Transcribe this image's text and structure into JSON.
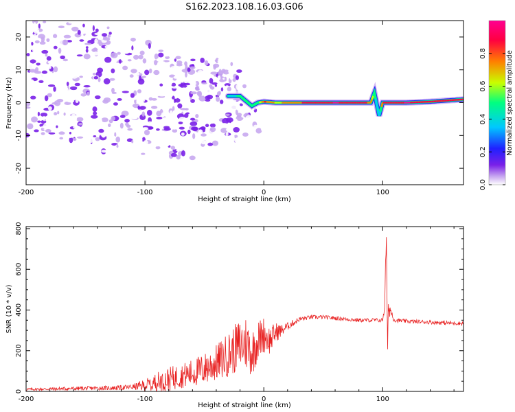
{
  "figure_title": "S162.2023.108.16.03.G06",
  "chart_data": [
    {
      "type": "heatmap",
      "title": "",
      "xlabel": "Height of straight line (km)",
      "ylabel": "Frequency (Hz)",
      "xlim": [
        -200,
        168
      ],
      "ylim": [
        -25,
        25
      ],
      "x_ticks": [
        -200,
        -100,
        0,
        100
      ],
      "y_ticks": [
        -20,
        -10,
        0,
        10,
        20
      ],
      "colorbar": {
        "label": "Normalized spectral amplitude",
        "range": [
          0,
          1
        ],
        "ticks": [
          0.0,
          0.2,
          0.4,
          0.6,
          0.8
        ],
        "colormap": [
          "#ffffff",
          "#c8a8f0",
          "#7a20e8",
          "#2020ff",
          "#00c8ff",
          "#00ff80",
          "#c8ff00",
          "#ff8000",
          "#ff0040",
          "#ff0090"
        ]
      },
      "ridge": {
        "description_points_x": [
          -30,
          -20,
          -10,
          -5,
          0,
          10,
          20,
          40,
          60,
          80,
          90,
          93,
          97,
          100,
          120,
          140,
          168
        ],
        "description_points_y": [
          2,
          2,
          -1,
          0,
          0.3,
          0,
          0,
          0,
          0,
          0,
          0,
          3,
          -4,
          0,
          0,
          0.3,
          1
        ],
        "amplitude": [
          0.4,
          0.55,
          0.5,
          0.6,
          0.85,
          0.7,
          0.75,
          0.9,
          0.95,
          0.9,
          0.8,
          0.5,
          0.45,
          0.9,
          0.95,
          0.9,
          0.85
        ]
      }
    },
    {
      "type": "line",
      "title": "",
      "xlabel": "Height of straight line (km)",
      "ylabel": "SNR (10 * v/v)",
      "xlim": [
        -200,
        168
      ],
      "ylim": [
        0,
        810
      ],
      "x_ticks": [
        -200,
        -100,
        0,
        100
      ],
      "y_ticks": [
        0,
        200,
        400,
        600,
        800
      ],
      "line_color": "#e82020",
      "series": [
        {
          "name": "",
          "x": [
            -200,
            -180,
            -160,
            -140,
            -120,
            -110,
            -100,
            -90,
            -80,
            -70,
            -60,
            -50,
            -40,
            -30,
            -20,
            -15,
            -10,
            -5,
            0,
            5,
            10,
            15,
            20,
            30,
            40,
            50,
            60,
            70,
            80,
            90,
            100,
            102,
            103,
            104,
            105,
            110,
            120,
            140,
            160,
            168
          ],
          "y": [
            10,
            12,
            14,
            16,
            18,
            22,
            30,
            45,
            60,
            75,
            90,
            110,
            140,
            180,
            230,
            240,
            190,
            250,
            280,
            250,
            290,
            300,
            320,
            355,
            365,
            365,
            360,
            355,
            350,
            350,
            350,
            450,
            800,
            200,
            420,
            350,
            345,
            340,
            335,
            335
          ],
          "noise_amplitude": [
            6,
            8,
            10,
            10,
            12,
            14,
            30,
            50,
            60,
            60,
            70,
            80,
            90,
            110,
            130,
            140,
            120,
            100,
            90,
            70,
            50,
            30,
            20,
            12,
            10,
            10,
            10,
            10,
            10,
            10,
            10,
            60,
            80,
            60,
            50,
            10,
            10,
            10,
            10,
            10
          ]
        }
      ]
    }
  ]
}
